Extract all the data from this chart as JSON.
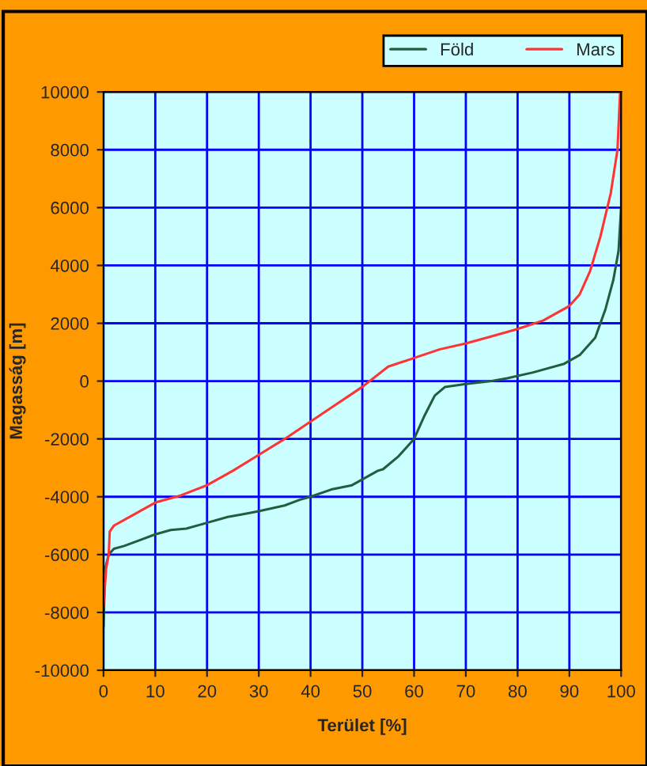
{
  "chart_data": {
    "type": "line",
    "xlabel": "Terület [%]",
    "ylabel": "Magasság [m]",
    "xlim": [
      0,
      100
    ],
    "ylim": [
      -10000,
      10000
    ],
    "xticks": [
      0,
      10,
      20,
      30,
      40,
      50,
      60,
      70,
      80,
      90,
      100
    ],
    "yticks": [
      -10000,
      -8000,
      -6000,
      -4000,
      -2000,
      0,
      2000,
      4000,
      6000,
      8000,
      10000
    ],
    "grid": true,
    "legend": "top right",
    "line_style": "solid",
    "series": [
      {
        "name": "Föld",
        "color": "#1f5f3f",
        "x": [
          0,
          0.3,
          1,
          2,
          4,
          7,
          10,
          13,
          16,
          20,
          24,
          27,
          30,
          35,
          38,
          40,
          44,
          48,
          50,
          53,
          54,
          57,
          60,
          62,
          64,
          66,
          70,
          75,
          78,
          83,
          89,
          92,
          95,
          97,
          98.5,
          99.5,
          100
        ],
        "values": [
          -8500,
          -6500,
          -6000,
          -5800,
          -5700,
          -5500,
          -5300,
          -5150,
          -5100,
          -4900,
          -4700,
          -4600,
          -4500,
          -4300,
          -4100,
          -4000,
          -3750,
          -3600,
          -3400,
          -3100,
          -3050,
          -2600,
          -2000,
          -1200,
          -500,
          -200,
          -100,
          0,
          100,
          300,
          600,
          900,
          1500,
          2500,
          3500,
          4500,
          6000
        ]
      },
      {
        "name": "Mars",
        "color": "#ff3333",
        "x": [
          0,
          0.5,
          1,
          1.2,
          2,
          5,
          10,
          15,
          20,
          25,
          30,
          35,
          40,
          45,
          50,
          55,
          60,
          65,
          70,
          75,
          80,
          85,
          90,
          92,
          94,
          96,
          98,
          99.3,
          99.8
        ],
        "values": [
          -7800,
          -6500,
          -6000,
          -5200,
          -5000,
          -4700,
          -4200,
          -3950,
          -3600,
          -3100,
          -2550,
          -2000,
          -1400,
          -800,
          -200,
          500,
          800,
          1100,
          1300,
          1550,
          1800,
          2100,
          2600,
          3000,
          3800,
          5000,
          6500,
          8000,
          10000
        ]
      }
    ]
  }
}
